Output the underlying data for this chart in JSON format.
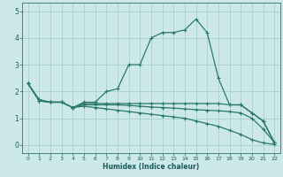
{
  "bg_color": "#cce8e8",
  "grid_color": "#aacfcf",
  "line_color": "#2a7a6a",
  "xlabel": "Humidex (Indice chaleur)",
  "ylim": [
    -0.3,
    5.3
  ],
  "xlim": [
    -0.5,
    22.5
  ],
  "yticks": [
    0,
    1,
    2,
    3,
    4,
    5
  ],
  "xticks": [
    0,
    1,
    2,
    3,
    4,
    5,
    6,
    7,
    8,
    9,
    10,
    11,
    12,
    13,
    14,
    15,
    16,
    17,
    18,
    19,
    20,
    21,
    22
  ],
  "series": [
    {
      "x": [
        0,
        1,
        2,
        3,
        4,
        5,
        6,
        7,
        8,
        9,
        10,
        11,
        12,
        13,
        14,
        15,
        16,
        17,
        18,
        19,
        20,
        21,
        22
      ],
      "y": [
        2.3,
        1.7,
        1.6,
        1.6,
        1.4,
        1.6,
        1.6,
        2.0,
        2.1,
        3.0,
        3.0,
        4.0,
        4.2,
        4.2,
        4.3,
        4.7,
        4.2,
        2.5,
        1.5,
        1.5,
        1.2,
        0.9,
        0.1
      ]
    },
    {
      "x": [
        0,
        1,
        2,
        3,
        4,
        5,
        6,
        7,
        8,
        9,
        10,
        11,
        12,
        13,
        14,
        15,
        16,
        17,
        18,
        19,
        20,
        21,
        22
      ],
      "y": [
        2.3,
        1.65,
        1.6,
        1.6,
        1.4,
        1.55,
        1.55,
        1.55,
        1.55,
        1.55,
        1.55,
        1.55,
        1.55,
        1.55,
        1.55,
        1.55,
        1.55,
        1.55,
        1.5,
        1.5,
        1.2,
        0.9,
        0.1
      ]
    },
    {
      "x": [
        0,
        1,
        2,
        3,
        4,
        5,
        6,
        7,
        8,
        9,
        10,
        11,
        12,
        13,
        14,
        15,
        16,
        17,
        18,
        19,
        20,
        21,
        22
      ],
      "y": [
        2.3,
        1.65,
        1.6,
        1.6,
        1.4,
        1.5,
        1.5,
        1.5,
        1.5,
        1.48,
        1.45,
        1.42,
        1.4,
        1.38,
        1.35,
        1.32,
        1.3,
        1.28,
        1.25,
        1.2,
        1.0,
        0.6,
        0.1
      ]
    },
    {
      "x": [
        0,
        1,
        2,
        3,
        4,
        5,
        6,
        7,
        8,
        9,
        10,
        11,
        12,
        13,
        14,
        15,
        16,
        17,
        18,
        19,
        20,
        21,
        22
      ],
      "y": [
        2.3,
        1.65,
        1.6,
        1.6,
        1.4,
        1.45,
        1.4,
        1.35,
        1.3,
        1.25,
        1.2,
        1.15,
        1.1,
        1.05,
        1.0,
        0.9,
        0.8,
        0.7,
        0.55,
        0.4,
        0.2,
        0.08,
        0.02
      ]
    }
  ]
}
